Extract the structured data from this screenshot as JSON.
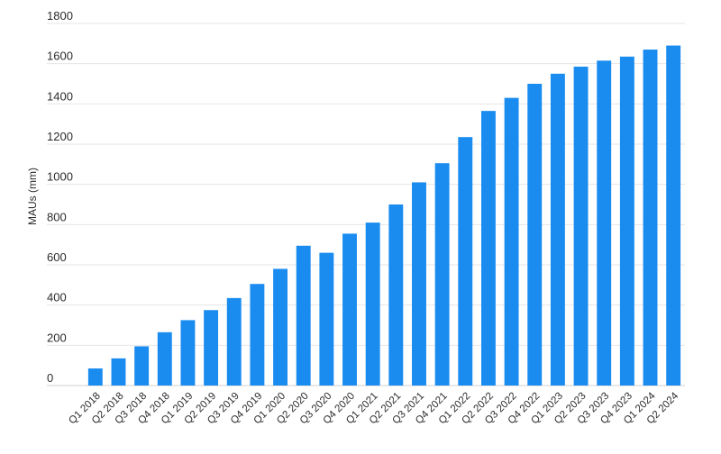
{
  "chart_data": {
    "type": "bar",
    "title": "",
    "xlabel": "",
    "ylabel": "MAUs (mm)",
    "ylim": [
      0,
      1800
    ],
    "yticks": [
      0,
      200,
      400,
      600,
      800,
      1000,
      1200,
      1400,
      1600,
      1800
    ],
    "grid": true,
    "legend": "none",
    "bar_color": "#1a8cf0",
    "categories": [
      "Q1 2018",
      "Q2 2018",
      "Q3 2018",
      "Q4 2018",
      "Q1 2019",
      "Q2 2019",
      "Q3 2019",
      "Q4 2019",
      "Q1 2020",
      "Q2 2020",
      "Q3 2020",
      "Q4 2020",
      "Q1 2021",
      "Q2 2021",
      "Q3 2021",
      "Q4 2021",
      "Q1 2022",
      "Q2 2022",
      "Q3 2022",
      "Q4 2022",
      "Q1 2023",
      "Q2 2023",
      "Q3 2023",
      "Q4 2023",
      "Q1 2024",
      "Q2 2024"
    ],
    "values": [
      85,
      135,
      195,
      265,
      325,
      375,
      435,
      505,
      580,
      695,
      660,
      755,
      810,
      900,
      1010,
      1105,
      1235,
      1365,
      1430,
      1500,
      1550,
      1585,
      1615,
      1635,
      1670,
      1690
    ]
  }
}
